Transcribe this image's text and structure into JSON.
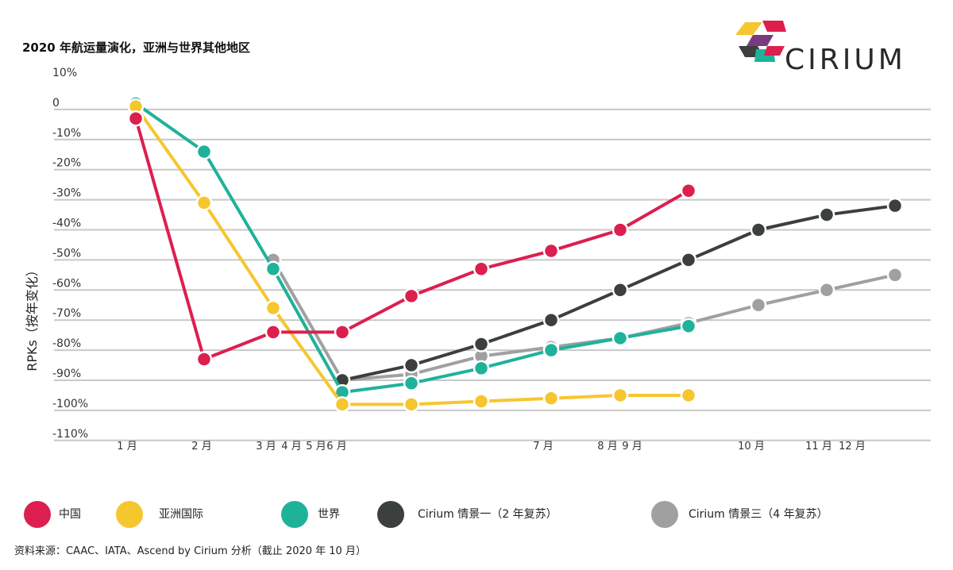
{
  "title": "2020 年航运量演化，亚洲与世界其他地区",
  "logo": {
    "text": "CIRIUM"
  },
  "source": "资料来源：CAAC、IATA、Ascend by Cirium 分析（截止 2020 年 10 月）",
  "colors": {
    "china": "#dc1f4f",
    "asia": "#f6c62e",
    "world": "#1fb29a",
    "scenario1": "#3b3f3e",
    "scenario3": "#a0a0a0"
  },
  "chart_data": {
    "type": "line",
    "title": "2020 年航运量演化，亚洲与世界其他地区",
    "ylabel": "RPKs（按年变化）",
    "xlabel": "",
    "ylim": [
      -110,
      10
    ],
    "yticks": [
      "10%",
      "0",
      "-10%",
      "-20%",
      "-30%",
      "-40%",
      "-50%",
      "-60%",
      "-70%",
      "-80%",
      "-90%",
      "-100%",
      "-110%"
    ],
    "x_ticks": [
      "1 月",
      "2 月",
      "3 月",
      "4 月",
      "5 月",
      "6 月",
      "7 月",
      "8 月",
      "9 月",
      "10 月",
      "11 月",
      "12 月"
    ],
    "x_index": [
      1,
      2,
      3,
      4,
      5,
      6,
      7,
      8,
      9,
      10,
      11,
      12
    ],
    "series": [
      {
        "name": "中国",
        "x": [
          1,
          2,
          3,
          4,
          5,
          6,
          7,
          8,
          9
        ],
        "values": [
          -3,
          -83,
          -74,
          -74,
          -62,
          -53,
          -47,
          -40,
          -27
        ]
      },
      {
        "name": "亚洲国际",
        "x": [
          1,
          2,
          3,
          4,
          5,
          6,
          7,
          8,
          9
        ],
        "values": [
          1,
          -31,
          -66,
          -98,
          -98,
          -97,
          -96,
          -95,
          -95
        ]
      },
      {
        "name": "世界",
        "x": [
          1,
          2,
          3,
          4,
          5,
          6,
          7,
          8,
          9
        ],
        "values": [
          2,
          -14,
          -53,
          -94,
          -91,
          -86,
          -80,
          -76,
          -72
        ]
      },
      {
        "name": "Cirium 情景一（2 年复苏）",
        "x": [
          4,
          5,
          6,
          7,
          8,
          9,
          10,
          11,
          12
        ],
        "values": [
          -90,
          -85,
          -78,
          -70,
          -60,
          -50,
          -40,
          -35,
          -32
        ]
      },
      {
        "name": "Cirium 情景三（4 年复苏）",
        "x": [
          3,
          4,
          5,
          6,
          7,
          8,
          9,
          10,
          11,
          12
        ],
        "values": [
          -50,
          -90,
          -88,
          -82,
          -79,
          -76,
          -71,
          -65,
          -60,
          -55
        ]
      }
    ],
    "grid": true,
    "legend_position": "bottom"
  }
}
